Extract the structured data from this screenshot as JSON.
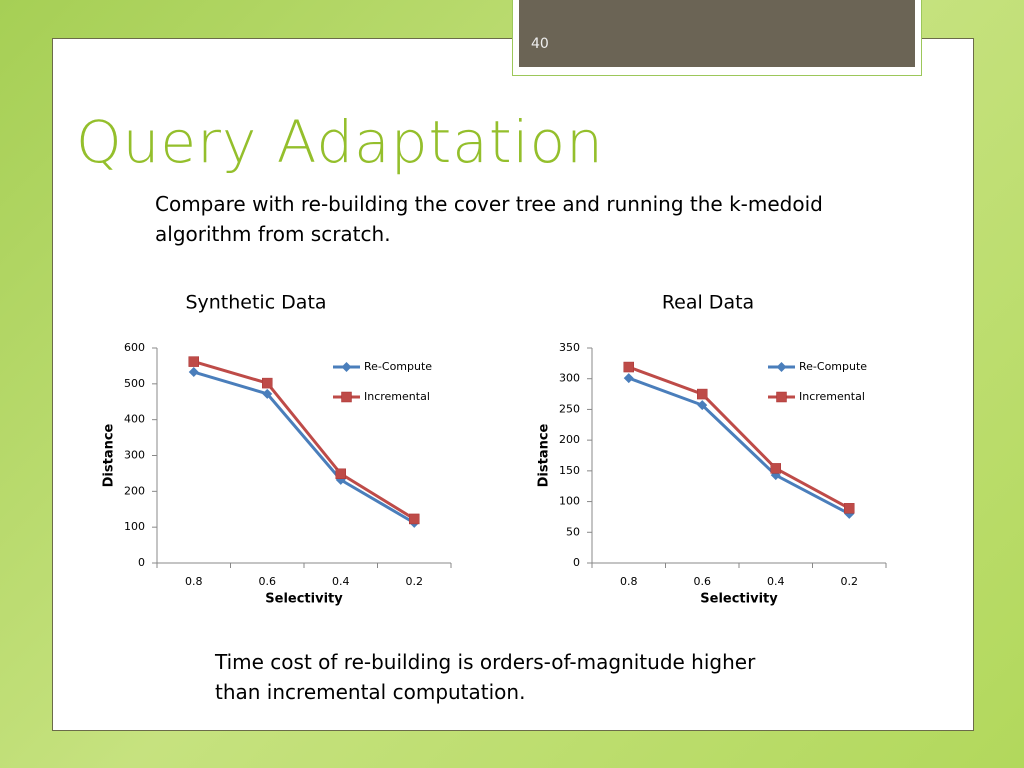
{
  "slide_number": "40",
  "title": "Query Adaptation",
  "intro": "Compare with re-building the cover tree and running the k-medoid algorithm from scratch.",
  "conclusion": "Time cost of re-building is orders-of-magnitude higher than incremental computation.",
  "chart_data": [
    {
      "type": "line",
      "title": "Synthetic Data",
      "x_label": "Selectivity",
      "y_label": "Distance",
      "categories": [
        "0.8",
        "0.6",
        "0.4",
        "0.2"
      ],
      "series": [
        {
          "name": "Re-Compute",
          "color": "#4a7ebb",
          "marker": "diamond",
          "values": [
            533,
            472,
            232,
            112
          ]
        },
        {
          "name": "Incremental",
          "color": "#be4b48",
          "marker": "square",
          "values": [
            562,
            502,
            249,
            123
          ]
        }
      ],
      "ylim": [
        0,
        600
      ],
      "yticks": [
        0,
        100,
        200,
        300,
        400,
        500,
        600
      ],
      "grid": false,
      "legend": "right"
    },
    {
      "type": "line",
      "title": "Real Data",
      "x_label": "Selectivity",
      "y_label": "Distance",
      "categories": [
        "0.8",
        "0.6",
        "0.4",
        "0.2"
      ],
      "series": [
        {
          "name": "Re-Compute",
          "color": "#4a7ebb",
          "marker": "diamond",
          "values": [
            301,
            257,
            143,
            80
          ]
        },
        {
          "name": "Incremental",
          "color": "#be4b48",
          "marker": "square",
          "values": [
            319,
            275,
            154,
            89
          ]
        }
      ],
      "ylim": [
        0,
        350
      ],
      "yticks": [
        0,
        50,
        100,
        150,
        200,
        250,
        300,
        350
      ],
      "grid": false,
      "legend": "right"
    }
  ]
}
